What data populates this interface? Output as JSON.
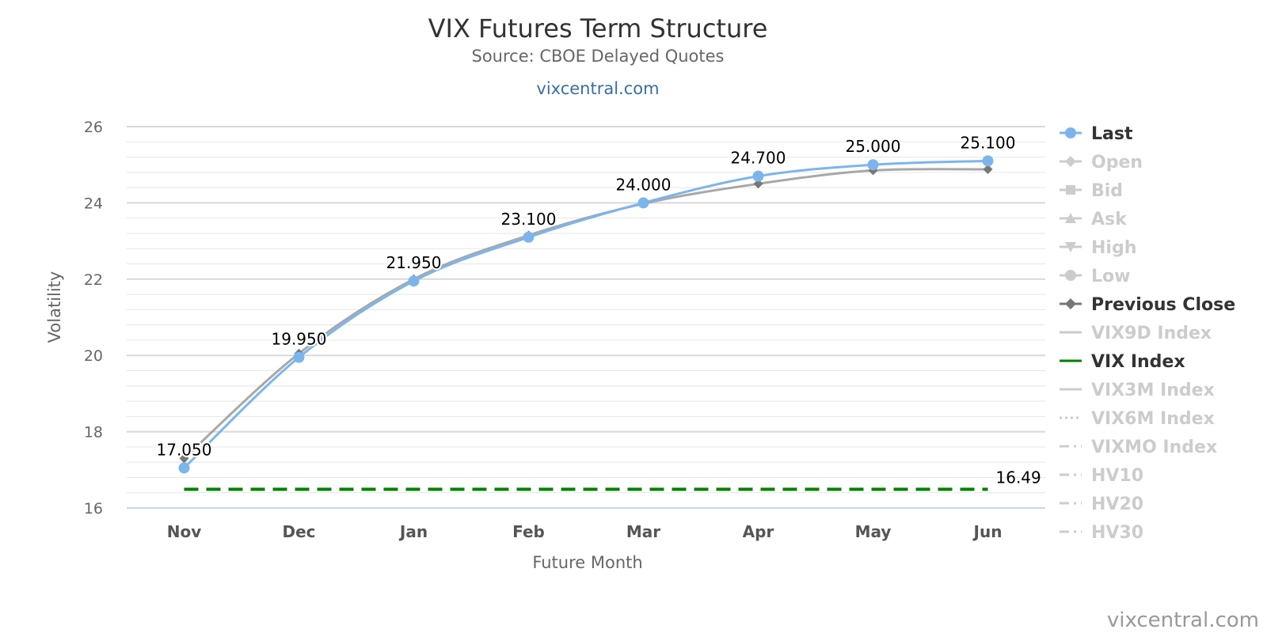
{
  "title": "VIX Futures Term Structure",
  "subtitle": "Source: CBOE Delayed Quotes",
  "site_link": "vixcentral.com",
  "credit": "vixcentral.com",
  "chart_data": {
    "type": "line",
    "categories": [
      "Nov",
      "Dec",
      "Jan",
      "Feb",
      "Mar",
      "Apr",
      "May",
      "Jun"
    ],
    "xlabel": "Future Month",
    "ylabel": "Volatility",
    "ylim": [
      16,
      26
    ],
    "yticks": [
      16,
      18,
      20,
      22,
      24,
      26
    ],
    "grid": true,
    "legend_position": "right",
    "series": [
      {
        "name": "Last",
        "values": [
          17.05,
          19.95,
          21.95,
          23.1,
          24.0,
          24.7,
          25.0,
          25.1
        ],
        "labels": [
          "17.050",
          "19.950",
          "21.950",
          "23.100",
          "24.000",
          "24.700",
          "25.000",
          "25.100"
        ],
        "color": "#7cb5ec"
      },
      {
        "name": "Previous Close",
        "values": [
          17.3,
          20.05,
          22.0,
          23.15,
          23.98,
          24.5,
          24.85,
          24.88
        ],
        "color": "#999999"
      },
      {
        "name": "VIX Index",
        "values": [
          16.49,
          16.49,
          16.49,
          16.49,
          16.49,
          16.49,
          16.49,
          16.49
        ],
        "end_label": "16.49",
        "color": "#008000"
      }
    ],
    "legend": [
      {
        "name": "Last",
        "active": true,
        "marker": "circle",
        "line": "solid",
        "color": "#7cb5ec"
      },
      {
        "name": "Open",
        "active": false,
        "marker": "diamond",
        "line": "solid"
      },
      {
        "name": "Bid",
        "active": false,
        "marker": "square",
        "line": "solid"
      },
      {
        "name": "Ask",
        "active": false,
        "marker": "triangle",
        "line": "solid"
      },
      {
        "name": "High",
        "active": false,
        "marker": "triangle-down",
        "line": "solid"
      },
      {
        "name": "Low",
        "active": false,
        "marker": "circle",
        "line": "solid"
      },
      {
        "name": "Previous Close",
        "active": true,
        "marker": "diamond",
        "line": "solid",
        "color": "#777777"
      },
      {
        "name": "VIX9D Index",
        "active": false,
        "marker": "none",
        "line": "solid"
      },
      {
        "name": "VIX Index",
        "active": true,
        "marker": "none",
        "line": "solid",
        "color": "#008000"
      },
      {
        "name": "VIX3M Index",
        "active": false,
        "marker": "none",
        "line": "solid"
      },
      {
        "name": "VIX6M Index",
        "active": false,
        "marker": "none",
        "line": "dotted"
      },
      {
        "name": "VIXMO Index",
        "active": false,
        "marker": "none",
        "line": "dashdot"
      },
      {
        "name": "HV10",
        "active": false,
        "marker": "none",
        "line": "dashdot"
      },
      {
        "name": "HV20",
        "active": false,
        "marker": "none",
        "line": "dashdot"
      },
      {
        "name": "HV30",
        "active": false,
        "marker": "none",
        "line": "dashdot"
      }
    ]
  },
  "colors": {
    "last": "#7cb5ec",
    "previous_close": "#999999",
    "vix_index": "#008000",
    "legend_active_text": "#333333",
    "legend_inactive": "#cccccc",
    "grid": "#e6e6e6"
  }
}
